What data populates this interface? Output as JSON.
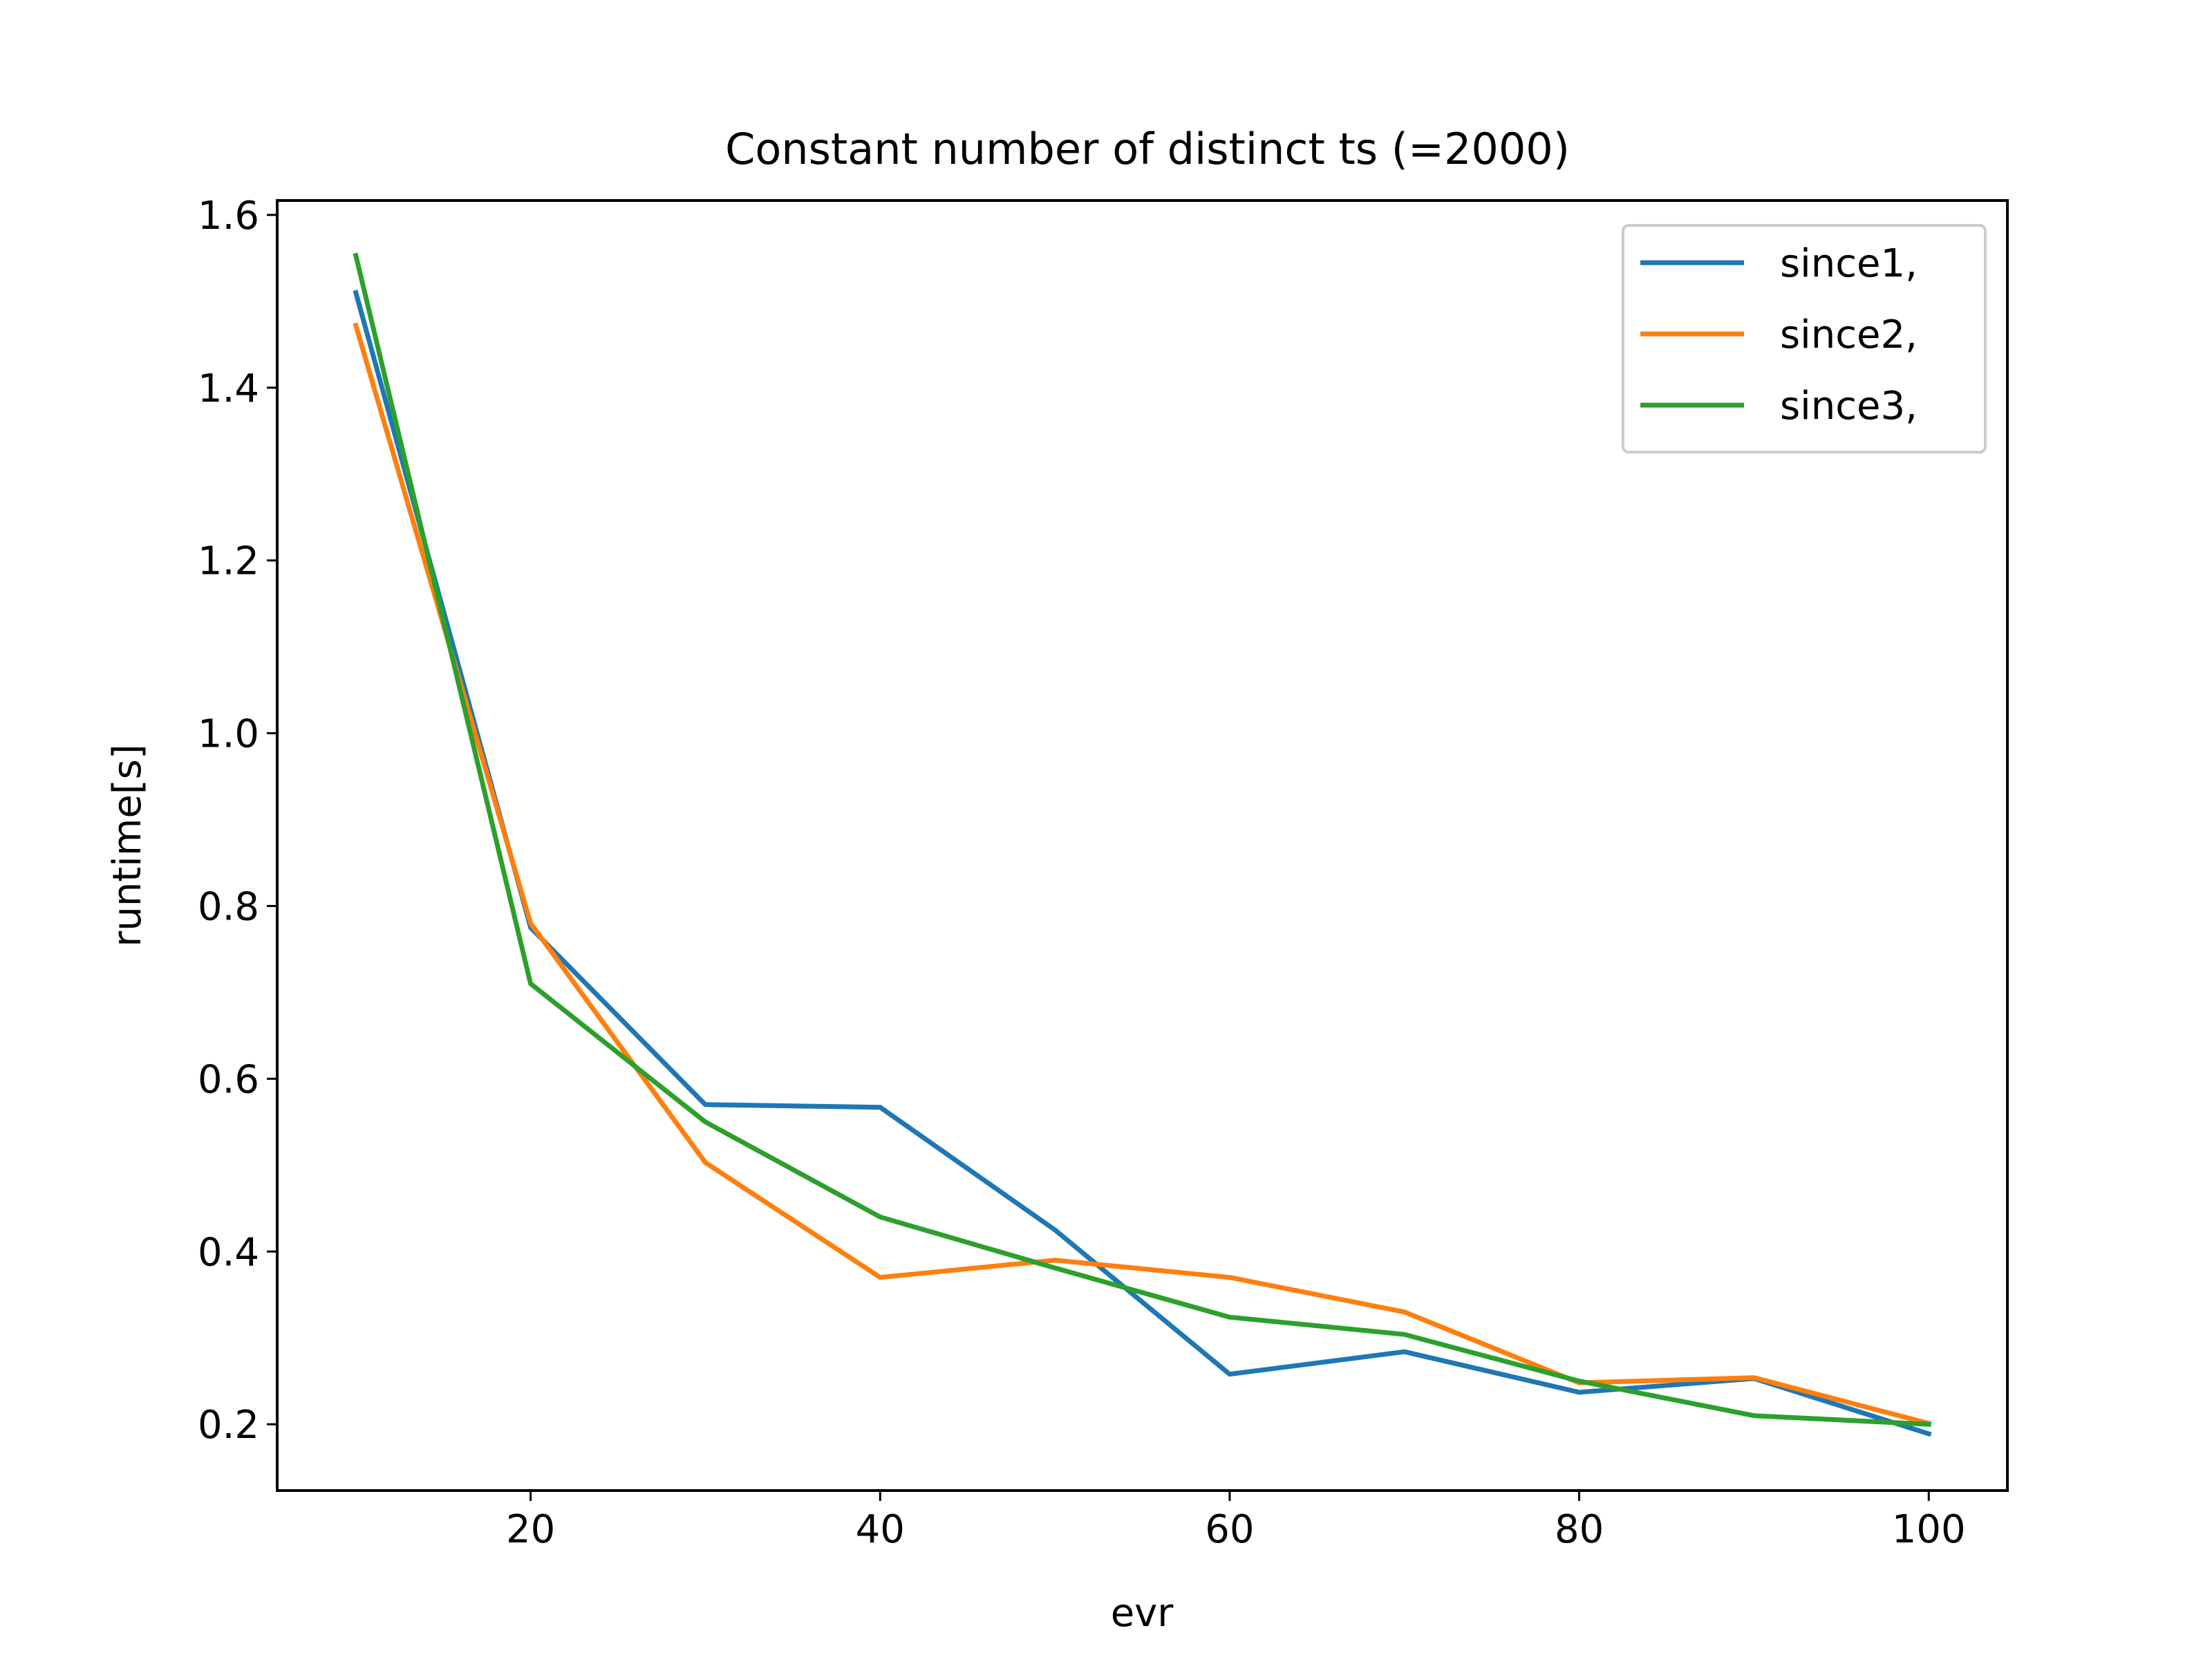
{
  "chart_data": {
    "type": "line",
    "title": "Constant number of distinct ts (=2000)",
    "xlabel": "evr",
    "ylabel": "runtime[s]",
    "x": [
      10,
      20,
      30,
      40,
      50,
      60,
      70,
      80,
      90,
      100
    ],
    "xlim": [
      5.5,
      104.5
    ],
    "ylim": [
      0.1233,
      1.6167
    ],
    "xticks": [
      20,
      40,
      60,
      80,
      100
    ],
    "yticks": [
      0.2,
      0.4,
      0.6,
      0.8,
      1.0,
      1.2,
      1.4,
      1.6
    ],
    "xtick_labels": [
      "20",
      "40",
      "60",
      "80",
      "100"
    ],
    "ytick_labels": [
      "0.2",
      "0.4",
      "0.6",
      "0.8",
      "1.0",
      "1.2",
      "1.4",
      "1.6"
    ],
    "grid": false,
    "legend_position": "top-right",
    "series": [
      {
        "name": "since1,",
        "color": "#1f77b4",
        "values": [
          1.51,
          0.775,
          0.57,
          0.567,
          0.425,
          0.258,
          0.284,
          0.237,
          0.253,
          0.189
        ]
      },
      {
        "name": "since2,",
        "color": "#ff7f0e",
        "values": [
          1.472,
          0.78,
          0.503,
          0.37,
          0.39,
          0.37,
          0.33,
          0.248,
          0.254,
          0.201
        ]
      },
      {
        "name": "since3,",
        "color": "#2ca02c",
        "values": [
          1.553,
          0.71,
          0.55,
          0.44,
          0.381,
          0.324,
          0.304,
          0.25,
          0.21,
          0.2
        ]
      }
    ]
  }
}
